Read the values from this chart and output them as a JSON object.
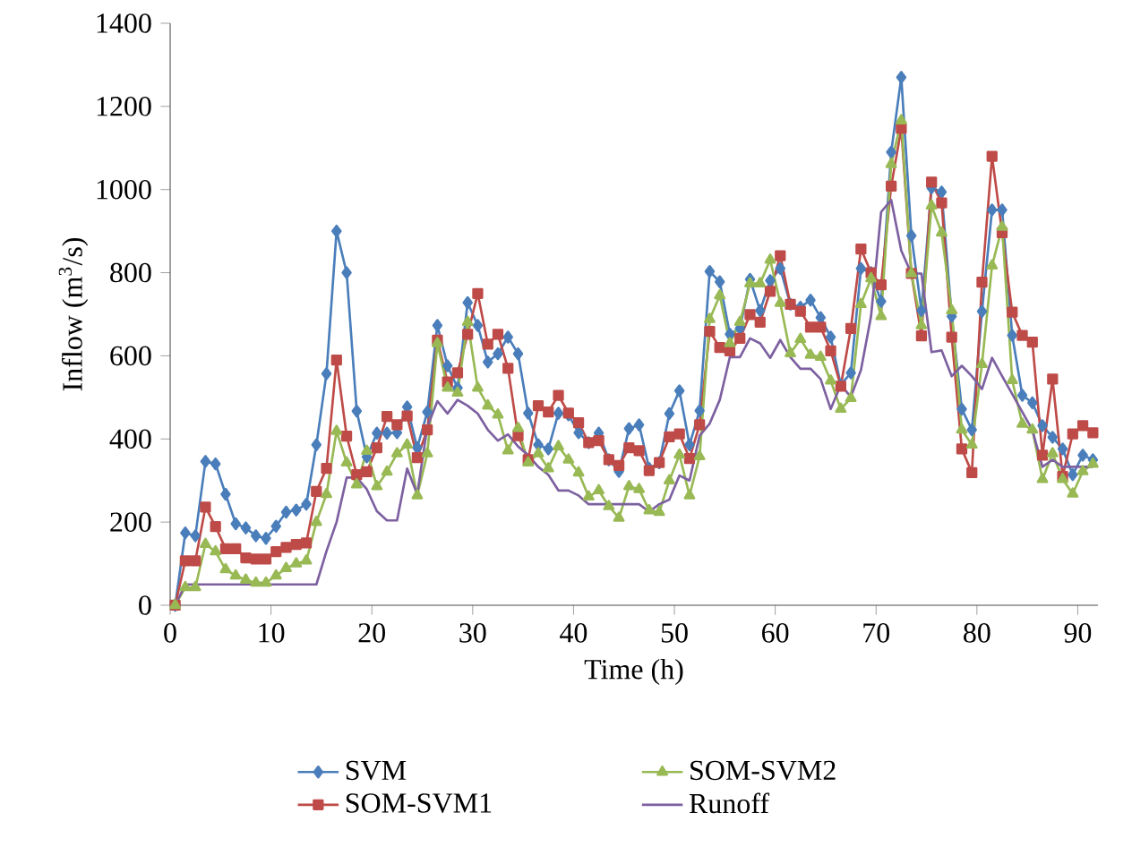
{
  "chart_data": {
    "type": "line",
    "xlabel": "Time (h)",
    "ylabel": "Inflow (m$^{3}$/s)",
    "xlim": [
      0,
      92
    ],
    "ylim": [
      0,
      1400
    ],
    "xticks": [
      0,
      10,
      20,
      30,
      40,
      50,
      60,
      70,
      80,
      90
    ],
    "yticks": [
      0,
      200,
      400,
      600,
      800,
      1000,
      1200,
      1400
    ],
    "grid": false,
    "legend": "bottom",
    "x": [
      0.5,
      1.5,
      2.5,
      3.5,
      4.5,
      5.5,
      6.5,
      7.5,
      8.5,
      9.5,
      10.5,
      11.5,
      12.5,
      13.5,
      14.5,
      15.5,
      16.5,
      17.5,
      18.5,
      19.5,
      20.5,
      21.5,
      22.5,
      23.5,
      24.5,
      25.5,
      26.5,
      27.5,
      28.5,
      29.5,
      30.5,
      31.5,
      32.5,
      33.5,
      34.5,
      35.5,
      36.5,
      37.5,
      38.5,
      39.5,
      40.5,
      41.5,
      42.5,
      43.5,
      44.5,
      45.5,
      46.5,
      47.5,
      48.5,
      49.5,
      50.5,
      51.5,
      52.5,
      53.5,
      54.5,
      55.5,
      56.5,
      57.5,
      58.5,
      59.5,
      60.5,
      61.5,
      62.5,
      63.5,
      64.5,
      65.5,
      66.5,
      67.5,
      68.5,
      69.5,
      70.5,
      71.5,
      72.5,
      73.5,
      74.5,
      75.5,
      76.5,
      77.5,
      78.5,
      79.5,
      80.5,
      81.5,
      82.5,
      83.5,
      84.5,
      85.5,
      86.5,
      87.5,
      88.5,
      89.5,
      90.5,
      91.5
    ],
    "series": [
      {
        "name": "SVM",
        "color": "#4a7ebb",
        "marker": "diamond",
        "values": [
          0,
          174,
          167,
          346,
          340,
          267,
          196,
          186,
          167,
          161,
          190,
          224,
          229,
          243,
          386,
          557,
          900,
          800,
          467,
          357,
          414,
          414,
          415,
          477,
          379,
          465,
          673,
          576,
          523,
          728,
          673,
          585,
          605,
          645,
          605,
          462,
          386,
          376,
          462,
          458,
          415,
          391,
          414,
          350,
          322,
          425,
          434,
          329,
          343,
          461,
          516,
          386,
          468,
          803,
          778,
          652,
          666,
          784,
          709,
          781,
          810,
          724,
          717,
          734,
          692,
          645,
          530,
          559,
          810,
          800,
          731,
          1090,
          1270,
          889,
          709,
          1004,
          994,
          695,
          472,
          422,
          707,
          951,
          951,
          649,
          505,
          487,
          432,
          404,
          376,
          314,
          361,
          350
        ]
      },
      {
        "name": "SOM-SVM1",
        "color": "#be4b48",
        "marker": "square",
        "values": [
          0,
          107,
          107,
          236,
          189,
          136,
          136,
          114,
          111,
          111,
          129,
          139,
          146,
          150,
          274,
          329,
          590,
          407,
          314,
          321,
          379,
          454,
          434,
          455,
          355,
          422,
          638,
          537,
          559,
          652,
          750,
          628,
          652,
          570,
          408,
          350,
          480,
          465,
          505,
          462,
          439,
          391,
          396,
          350,
          336,
          379,
          372,
          324,
          343,
          405,
          412,
          353,
          434,
          659,
          620,
          612,
          642,
          699,
          681,
          755,
          841,
          724,
          707,
          669,
          669,
          612,
          527,
          666,
          857,
          800,
          771,
          1008,
          1147,
          798,
          648,
          1018,
          968,
          645,
          376,
          319,
          777,
          1080,
          896,
          705,
          649,
          633,
          361,
          544,
          310,
          412,
          432,
          415
        ]
      },
      {
        "name": "SOM-SVM2",
        "color": "#98b954",
        "marker": "triangle",
        "values": [
          0,
          43,
          43,
          147,
          129,
          86,
          71,
          61,
          54,
          54,
          71,
          89,
          100,
          107,
          200,
          267,
          419,
          343,
          290,
          371,
          286,
          321,
          365,
          386,
          264,
          365,
          630,
          523,
          511,
          681,
          523,
          480,
          458,
          372,
          426,
          343,
          365,
          329,
          382,
          350,
          319,
          261,
          276,
          238,
          210,
          286,
          279,
          228,
          224,
          300,
          362,
          264,
          358,
          688,
          745,
          630,
          681,
          774,
          774,
          831,
          727,
          606,
          640,
          602,
          597,
          540,
          472,
          498,
          724,
          786,
          695,
          1061,
          1166,
          798,
          673,
          961,
          896,
          709,
          422,
          386,
          580,
          817,
          910,
          541,
          436,
          422,
          303,
          365,
          303,
          268,
          322,
          340
        ]
      },
      {
        "name": "Runoff",
        "color": "#7d60a0",
        "marker": "none",
        "values": [
          0,
          50,
          50,
          50,
          50,
          50,
          50,
          50,
          50,
          50,
          50,
          50,
          50,
          50,
          50,
          130,
          200,
          307,
          307,
          279,
          226,
          204,
          204,
          329,
          267,
          429,
          491,
          461,
          494,
          480,
          461,
          422,
          396,
          411,
          382,
          361,
          333,
          314,
          276,
          276,
          264,
          243,
          243,
          243,
          243,
          243,
          243,
          225,
          243,
          254,
          312,
          300,
          408,
          437,
          494,
          597,
          597,
          642,
          630,
          595,
          638,
          597,
          569,
          569,
          544,
          472,
          530,
          501,
          566,
          695,
          946,
          975,
          853,
          798,
          798,
          609,
          613,
          551,
          576,
          551,
          520,
          595,
          551,
          508,
          465,
          422,
          333,
          350,
          333,
          333,
          333,
          333
        ]
      }
    ]
  }
}
